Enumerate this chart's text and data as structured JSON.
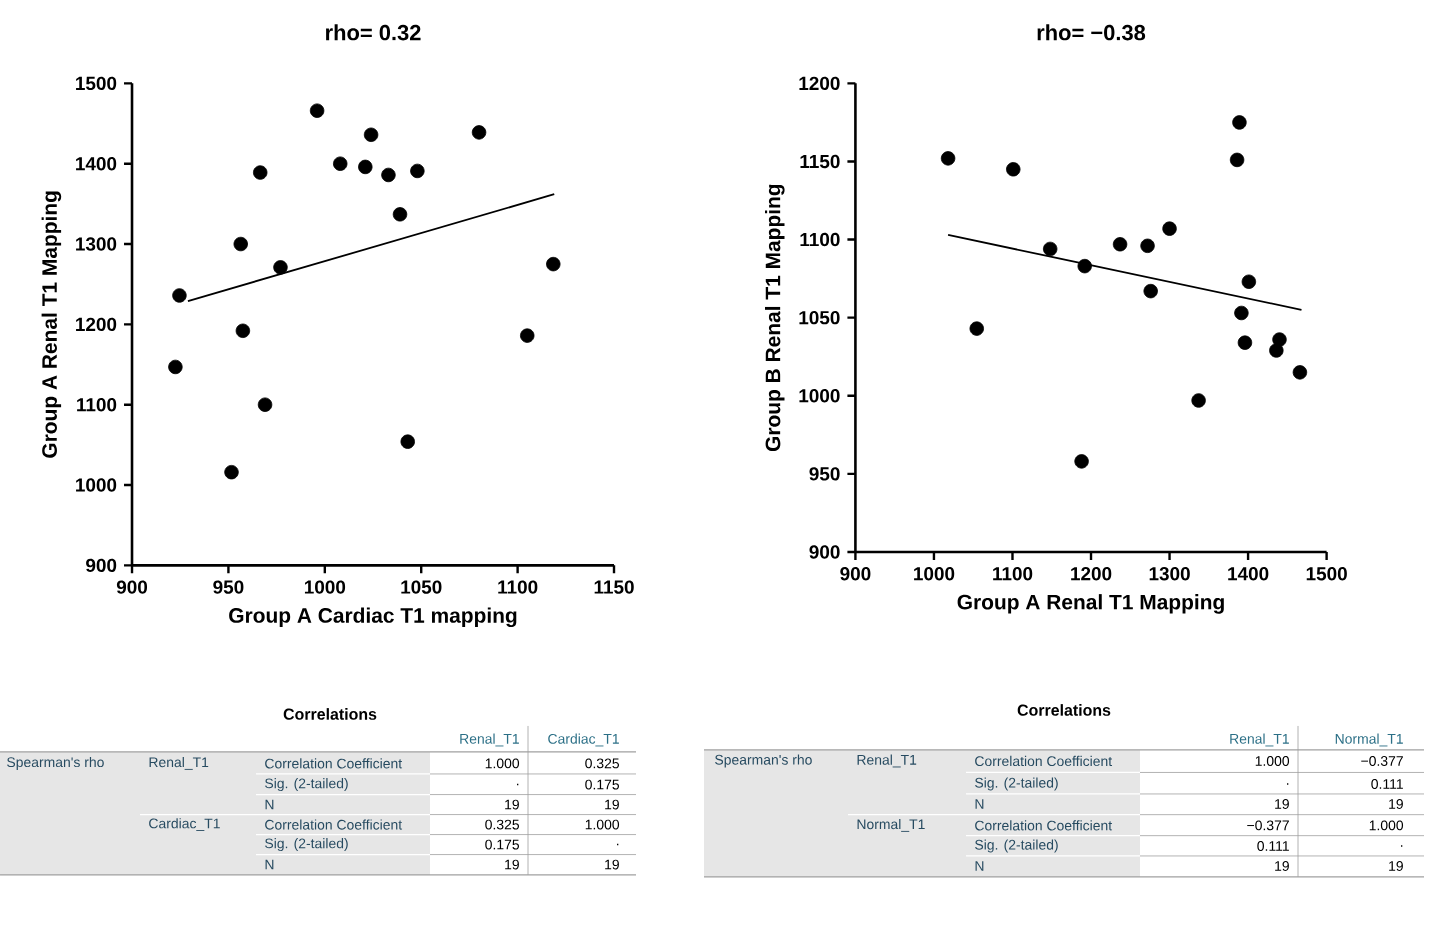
{
  "chart_data": [
    {
      "type": "scatter",
      "title": "rho= 0.32",
      "xlabel": "Group A Cardiac T1 mapping",
      "ylabel": "Group A Renal T1 Mapping",
      "xlim": [
        900,
        1150
      ],
      "ylim": [
        900,
        1500
      ],
      "xticks": [
        900,
        950,
        1000,
        1050,
        1100,
        1150
      ],
      "yticks": [
        900,
        1000,
        1100,
        1200,
        1300,
        1400,
        1500
      ],
      "series": [
        {
          "type": "scatter",
          "marker": "circle",
          "color": "#000000",
          "x": [
            922.5,
            924.6,
            951.6,
            956.4,
            957.5,
            966.5,
            969,
            977,
            996,
            1008,
            1021,
            1024,
            1033,
            1039,
            1043,
            1048,
            1080,
            1105,
            1118.5
          ],
          "values": [
            1147,
            1236,
            1016,
            1300,
            1192,
            1389,
            1100,
            1271,
            1466,
            1400,
            1396,
            1436,
            1386,
            1337,
            1054,
            1391,
            1439,
            1186,
            1275
          ]
        },
        {
          "type": "line",
          "marker": "none",
          "line_style": "solid",
          "color": "#000000",
          "x": [
            929,
            1119
          ],
          "values": [
            1229,
            1362
          ]
        }
      ]
    },
    {
      "type": "scatter",
      "title": "rho= −0.38",
      "xlabel": "Group A Renal T1 Mapping",
      "ylabel": "Group B Renal T1 Mapping",
      "xlim": [
        900,
        1500
      ],
      "ylim": [
        900,
        1200
      ],
      "xticks": [
        900,
        1000,
        1100,
        1200,
        1300,
        1400,
        1500
      ],
      "yticks": [
        900,
        950,
        1000,
        1050,
        1100,
        1150,
        1200
      ],
      "series": [
        {
          "type": "scatter",
          "marker": "circle",
          "color": "#000000",
          "x": [
            1018,
            1054.5,
            1101,
            1148,
            1188,
            1192,
            1237,
            1272,
            1276,
            1300,
            1337,
            1389,
            1386,
            1391.5,
            1396,
            1401,
            1436,
            1440,
            1466
          ],
          "values": [
            1152,
            1043,
            1145,
            1094,
            958,
            1083,
            1097,
            1096,
            1067,
            1107,
            997,
            1175,
            1151,
            1053,
            1034,
            1073,
            1029,
            1036,
            1015
          ]
        },
        {
          "type": "line",
          "marker": "none",
          "line_style": "solid",
          "color": "#000000",
          "x": [
            1018,
            1468
          ],
          "values": [
            1103,
            1055
          ]
        }
      ]
    },
    {
      "type": "other",
      "title": "Correlations",
      "categories": [
        "Renal_T1",
        "Cardiac_T1"
      ],
      "annotations": [
        "Spearman's rho",
        "Renal_T1",
        "Cardiac_T1",
        "Correlation Coefficient",
        "1.000",
        "0.325",
        "Sig. (2-tailed)",
        ".",
        "0.175",
        "N",
        "19",
        "19",
        "Correlation Coefficient",
        "0.325",
        "1.000",
        "Sig. (2-tailed)",
        "0.175",
        ".",
        "N",
        "19",
        "19"
      ]
    },
    {
      "type": "other",
      "title": "Correlations",
      "categories": [
        "Renal_T1",
        "Normal_T1"
      ],
      "annotations": [
        "Spearman's rho",
        "Renal_T1",
        "Normal_T1",
        "Correlation Coefficient",
        "1.000",
        "−0.377",
        "Sig. (2-tailed)",
        ".",
        "0.111",
        "N",
        "19",
        "19",
        "Correlation Coefficient",
        "−0.377",
        "1.000",
        "Sig. (2-tailed)",
        "0.111",
        ".",
        "N",
        "19",
        "19"
      ]
    }
  ]
}
